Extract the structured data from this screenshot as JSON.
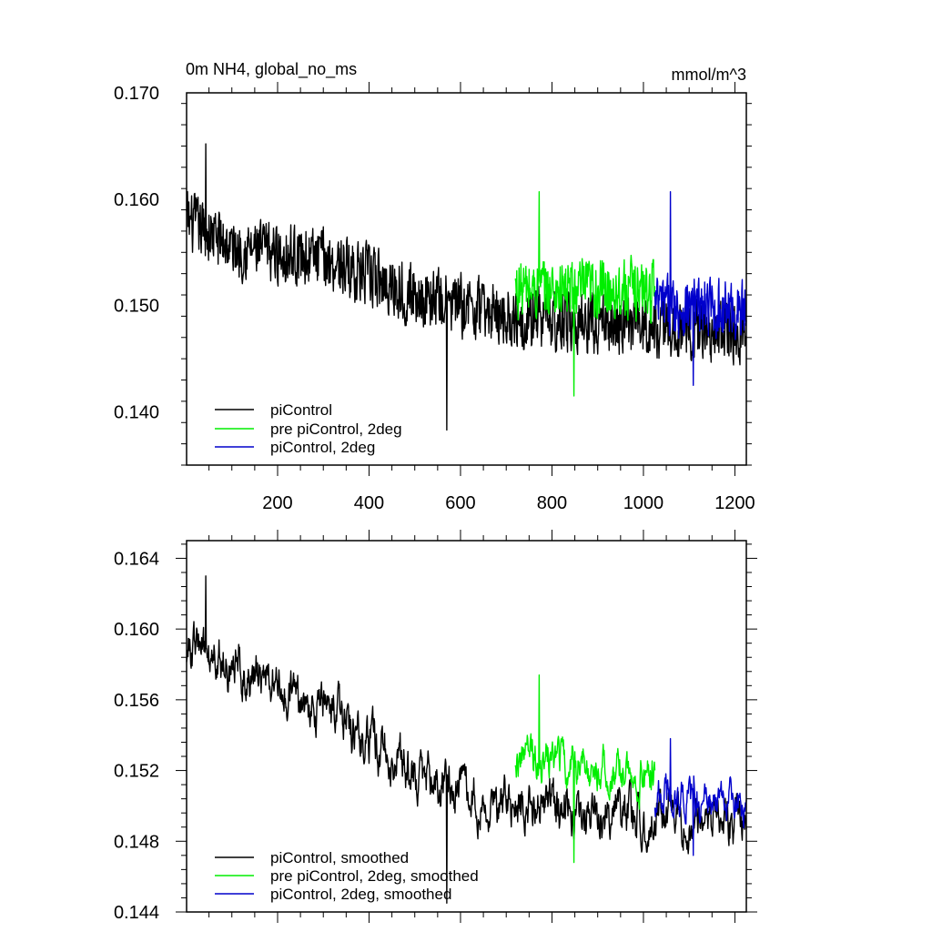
{
  "chart_data": [
    {
      "type": "line",
      "title": "0m NH4, global_no_ms",
      "units_label": "mmol/m^3",
      "xlim": [
        1,
        1225
      ],
      "ylim": [
        0.135,
        0.17
      ],
      "y_tick_labels": [
        "0.140",
        "0.150",
        "0.160",
        "0.170"
      ],
      "x_tick_labels": [
        "200",
        "400",
        "600",
        "800",
        "1000",
        "1200"
      ],
      "grid": false,
      "legend_position": "bottom-left",
      "series": [
        {
          "name": "piControl",
          "color": "#000000",
          "x_range": [
            1,
            1225
          ],
          "trend": [
            [
              1,
              0.158
            ],
            [
              100,
              0.1555
            ],
            [
              300,
              0.1545
            ],
            [
              500,
              0.151
            ],
            [
              700,
              0.149
            ],
            [
              1000,
              0.148
            ],
            [
              1225,
              0.1475
            ]
          ],
          "noise_amplitude": 0.0035,
          "extremes": [
            [
              0.1652
            ],
            [
              0.1383
            ]
          ]
        },
        {
          "name": "pre piControl, 2deg",
          "color": "#00ee00",
          "x_range": [
            720,
            1025
          ],
          "trend": [
            [
              720,
              0.1515
            ],
            [
              1025,
              0.1515
            ]
          ],
          "noise_amplitude": 0.0035,
          "extremes": [
            [
              0.1607
            ],
            [
              0.1415
            ]
          ]
        },
        {
          "name": "piControl, 2deg",
          "color": "#0000cc",
          "x_range": [
            1025,
            1225
          ],
          "trend": [
            [
              1025,
              0.15
            ],
            [
              1225,
              0.1495
            ]
          ],
          "noise_amplitude": 0.0035,
          "extremes": [
            [
              0.1607
            ],
            [
              0.1425
            ]
          ]
        }
      ]
    },
    {
      "type": "line",
      "xlim": [
        1,
        1225
      ],
      "ylim": [
        0.144,
        0.165
      ],
      "y_tick_labels": [
        "0.144",
        "0.148",
        "0.152",
        "0.156",
        "0.160",
        "0.164"
      ],
      "grid": false,
      "legend_position": "bottom-left",
      "series": [
        {
          "name": "piControl, smoothed",
          "color": "#000000",
          "x_range": [
            1,
            1225
          ],
          "trend": [
            [
              1,
              0.159
            ],
            [
              100,
              0.158
            ],
            [
              300,
              0.1555
            ],
            [
              500,
              0.152
            ],
            [
              700,
              0.15
            ],
            [
              1000,
              0.1495
            ],
            [
              1225,
              0.149
            ]
          ],
          "noise_amplitude": 0.0018,
          "extremes": [
            [
              0.163
            ],
            [
              0.1445
            ]
          ]
        },
        {
          "name": "pre piControl, 2deg, smoothed",
          "color": "#00ee00",
          "x_range": [
            720,
            1025
          ],
          "trend": [
            [
              720,
              0.153
            ],
            [
              1025,
              0.1515
            ]
          ],
          "noise_amplitude": 0.0016,
          "extremes": [
            [
              0.1574
            ],
            [
              0.1468
            ]
          ]
        },
        {
          "name": "piControl, 2deg, smoothed",
          "color": "#0000cc",
          "x_range": [
            1025,
            1225
          ],
          "trend": [
            [
              1025,
              0.1505
            ],
            [
              1225,
              0.15
            ]
          ],
          "noise_amplitude": 0.0015,
          "extremes": [
            [
              0.1538
            ],
            [
              0.1472
            ]
          ]
        }
      ]
    }
  ]
}
